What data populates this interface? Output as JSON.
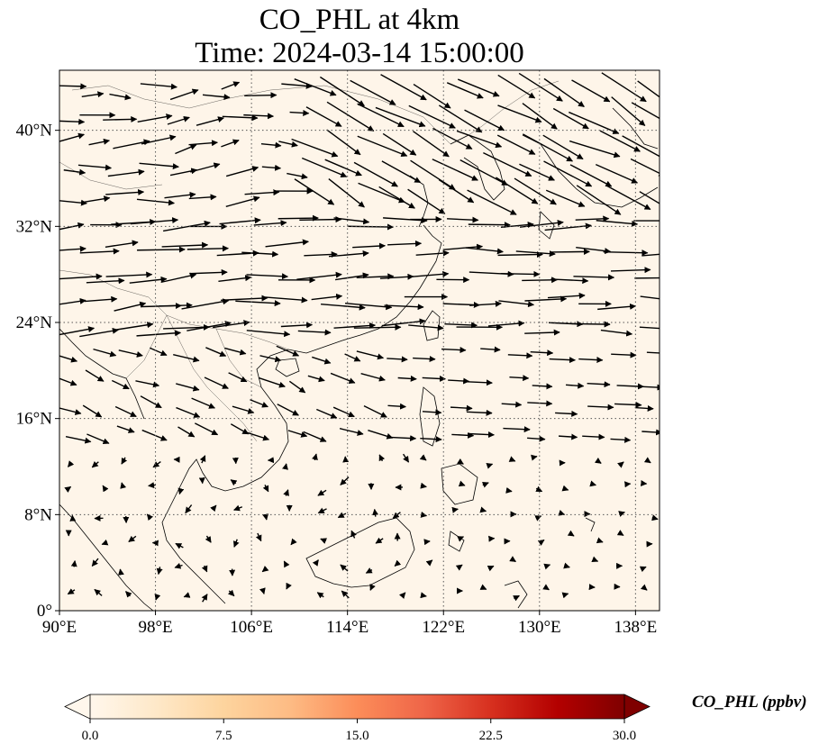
{
  "title": "CO_PHL at 4km",
  "subtitle": "Time: 2024-03-14 15:00:00",
  "map": {
    "lon_range": [
      90,
      140
    ],
    "lat_range": [
      0,
      45
    ],
    "x_ticks": [
      {
        "value": 90,
        "label": "90°E"
      },
      {
        "value": 98,
        "label": "98°E"
      },
      {
        "value": 106,
        "label": "106°E"
      },
      {
        "value": 114,
        "label": "114°E"
      },
      {
        "value": 122,
        "label": "122°E"
      },
      {
        "value": 130,
        "label": "130°E"
      },
      {
        "value": 138,
        "label": "138°E"
      }
    ],
    "y_ticks": [
      {
        "value": 0,
        "label": "0°"
      },
      {
        "value": 8,
        "label": "8°N"
      },
      {
        "value": 16,
        "label": "16°N"
      },
      {
        "value": 24,
        "label": "24°N"
      },
      {
        "value": 32,
        "label": "32°N"
      },
      {
        "value": 40,
        "label": "40°N"
      }
    ],
    "gridlines": "dotted",
    "field_color": "#fef5e9",
    "coastline_color": "#000000",
    "wind_vectors": "black arrows"
  },
  "colorbar": {
    "label": "CO_PHL (ppbv)",
    "colormap": "OrRd",
    "range": [
      0.0,
      30.0
    ],
    "extend": "both",
    "ticks": [
      {
        "value": 0.0,
        "label": "0.0"
      },
      {
        "value": 7.5,
        "label": "7.5"
      },
      {
        "value": 15.0,
        "label": "15.0"
      },
      {
        "value": 22.5,
        "label": "22.5"
      },
      {
        "value": 30.0,
        "label": "30.0"
      }
    ],
    "colors": [
      "#fff7ec",
      "#fee8c8",
      "#fdd49e",
      "#fdbb84",
      "#fc8d59",
      "#ef6548",
      "#d7301f",
      "#b30000",
      "#7f0000"
    ]
  }
}
